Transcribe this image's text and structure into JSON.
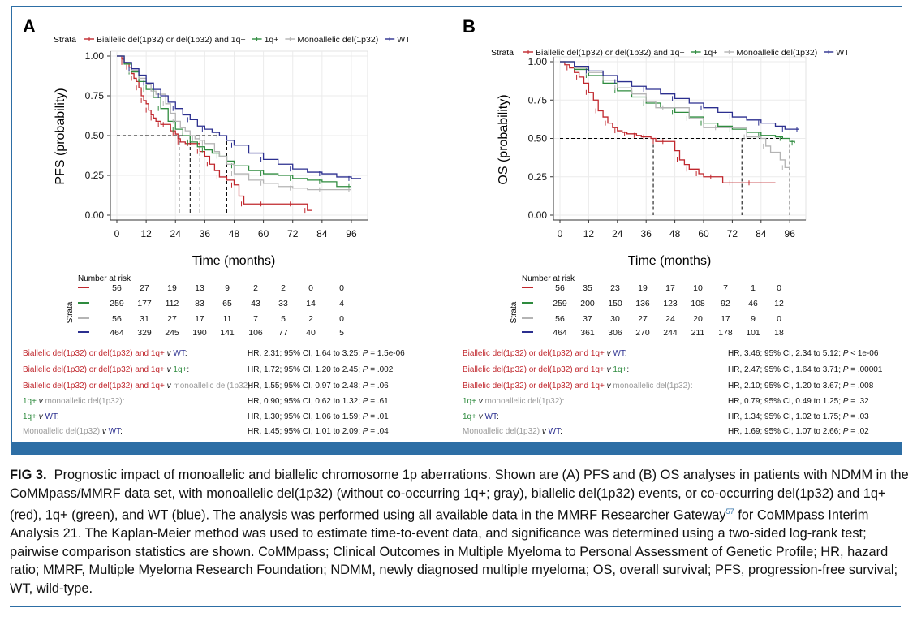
{
  "colors": {
    "biallelic": "#c0272d",
    "one_q": "#2e8b3e",
    "mono": "#b4b4b4",
    "wt": "#2b2f8f",
    "frame": "#2d6ea5"
  },
  "panels": [
    {
      "letter": "A",
      "legend": {
        "title": "Strata",
        "items": [
          "Biallelic del(1p32) or del(1p32) and 1q+",
          "1q+",
          "Monoallelic del(1p32)",
          "WT"
        ]
      },
      "risk_table": {
        "title": "Number at risk",
        "strata_label": "Strata",
        "rows": [
          [
            "56",
            "27",
            "19",
            "13",
            "9",
            "2",
            "2",
            "0",
            "0"
          ],
          [
            "259",
            "177",
            "112",
            "83",
            "65",
            "43",
            "33",
            "14",
            "4"
          ],
          [
            "56",
            "31",
            "27",
            "17",
            "11",
            "7",
            "5",
            "2",
            "0"
          ],
          [
            "464",
            "329",
            "245",
            "190",
            "141",
            "106",
            "77",
            "40",
            "5"
          ]
        ]
      },
      "comparisons": [
        {
          "a": "Biallelic del(1p32) or del(1p32) and 1q+",
          "v": "v",
          "b": "WT",
          "end": ":",
          "stats": "HR, 2.31; 95% CI, 1.64 to 3.25;",
          "p": "P",
          "pv": "= 1.5e-06"
        },
        {
          "a": "Biallelic del(1p32) or del(1p32) and 1q+",
          "v": "v",
          "b": "1q+",
          "end": ":",
          "stats": "HR, 1.72; 95% CI, 1.20 to 2.45;",
          "p": "P",
          "pv": "= .002"
        },
        {
          "a": "Biallelic del(1p32) or del(1p32) and 1q+",
          "v": "v",
          "b": "monoallelic del(1p32)",
          "end": ":",
          "stats": "HR, 1.55; 95% CI, 0.97 to 2.48;",
          "p": "P",
          "pv": "= .06"
        },
        {
          "a": "1q+",
          "v": "v",
          "b": "monoallelic del(1p32)",
          "end": ":",
          "stats": "HR, 0.90; 95% CI, 0.62 to 1.32;",
          "p": "P",
          "pv": "= .61"
        },
        {
          "a": "1q+",
          "v": "v",
          "b": "WT",
          "end": ":",
          "stats": "HR, 1.30; 95% CI, 1.06 to 1.59;",
          "p": "P",
          "pv": "= .01"
        },
        {
          "a": "Monoallelic del(1p32)",
          "v": "v",
          "b": "WT",
          "end": ":",
          "stats": "HR, 1.45; 95% CI, 1.01 to 2.09;",
          "p": "P",
          "pv": "= .04"
        }
      ]
    },
    {
      "letter": "B",
      "legend": {
        "title": "Strata",
        "items": [
          "Biallelic del(1p32) or del(1p32) and 1q+",
          "1q+",
          "Monoallelic del(1p32)",
          "WT"
        ]
      },
      "risk_table": {
        "title": "Number at risk",
        "strata_label": "Strata",
        "rows": [
          [
            "56",
            "35",
            "23",
            "19",
            "17",
            "10",
            "7",
            "1",
            "0"
          ],
          [
            "259",
            "200",
            "150",
            "136",
            "123",
            "108",
            "92",
            "46",
            "12"
          ],
          [
            "56",
            "37",
            "30",
            "27",
            "24",
            "20",
            "17",
            "9",
            "0"
          ],
          [
            "464",
            "361",
            "306",
            "270",
            "244",
            "211",
            "178",
            "101",
            "18"
          ]
        ]
      },
      "comparisons": [
        {
          "a": "Biallelic del(1p32) or del(1p32) and 1q+",
          "v": "v",
          "b": "WT",
          "end": ":",
          "stats": "HR, 3.46; 95% CI, 2.34 to 5.12;",
          "p": "P",
          "pv": "< 1e-06"
        },
        {
          "a": "Biallelic del(1p32) or del(1p32) and 1q+",
          "v": "v",
          "b": "1q+",
          "end": ":",
          "stats": "HR, 2.47; 95% CI, 1.64 to 3.71;",
          "p": "P",
          "pv": "= .00001"
        },
        {
          "a": "Biallelic del(1p32) or del(1p32) and 1q+",
          "v": "v",
          "b": "monoallelic del(1p32)",
          "end": ":",
          "stats": "HR, 2.10; 95% CI, 1.20 to 3.67;",
          "p": "P",
          "pv": "= .008"
        },
        {
          "a": "1q+",
          "v": "v",
          "b": "monoallelic del(1p32)",
          "end": ":",
          "stats": "HR, 0.79; 95% CI, 0.49 to 1.25;",
          "p": "P",
          "pv": "= .32"
        },
        {
          "a": "1q+",
          "v": "v",
          "b": "WT",
          "end": ":",
          "stats": "HR, 1.34; 95% CI, 1.02 to 1.75;",
          "p": "P",
          "pv": "= .03"
        },
        {
          "a": "Monoallelic del(1p32)",
          "v": "v",
          "b": "WT",
          "end": ":",
          "stats": "HR, 1.69; 95% CI, 1.07 to 2.66;",
          "p": "P",
          "pv": "= .02"
        }
      ]
    }
  ],
  "chart_data": [
    {
      "type": "line",
      "panel": "A",
      "xlabel": "Time (months)",
      "ylabel": "PFS (probability)",
      "xlim": [
        0,
        100
      ],
      "ylim": [
        0,
        1.0
      ],
      "x_ticks": [
        "0",
        "12",
        "24",
        "36",
        "48",
        "60",
        "72",
        "84",
        "96"
      ],
      "y_ticks": [
        "0.00",
        "0.25",
        "0.50",
        "0.75",
        "1.00"
      ],
      "grid": true,
      "legend_position": "top",
      "medians": [
        25.5,
        30,
        34,
        45
      ],
      "series": [
        {
          "name": "Biallelic del(1p32) or del(1p32) and 1q+",
          "color_key": "biallelic",
          "x": [
            0,
            2,
            3,
            4,
            5,
            6,
            7,
            8,
            9,
            10,
            11,
            12,
            13,
            14,
            15,
            16,
            18,
            19,
            20,
            22,
            24,
            25,
            26,
            28,
            30,
            32,
            34,
            36,
            38,
            40,
            42,
            45,
            48,
            50,
            52,
            56,
            60,
            66,
            72,
            76,
            78,
            80
          ],
          "y": [
            1.0,
            0.98,
            0.96,
            0.95,
            0.93,
            0.89,
            0.86,
            0.84,
            0.8,
            0.75,
            0.72,
            0.7,
            0.66,
            0.63,
            0.61,
            0.59,
            0.57,
            0.57,
            0.57,
            0.53,
            0.51,
            0.48,
            0.46,
            0.45,
            0.45,
            0.45,
            0.4,
            0.37,
            0.32,
            0.28,
            0.24,
            0.22,
            0.19,
            0.12,
            0.07,
            0.07,
            0.07,
            0.07,
            0.07,
            0.07,
            0.03,
            0.03
          ]
        },
        {
          "name": "1q+",
          "color_key": "one_q",
          "x": [
            0,
            3,
            6,
            9,
            12,
            15,
            18,
            21,
            24,
            27,
            30,
            33,
            36,
            39,
            42,
            45,
            48,
            54,
            60,
            66,
            72,
            78,
            84,
            90,
            96
          ],
          "y": [
            1.0,
            0.95,
            0.9,
            0.84,
            0.79,
            0.74,
            0.67,
            0.59,
            0.54,
            0.5,
            0.46,
            0.43,
            0.41,
            0.39,
            0.37,
            0.34,
            0.31,
            0.28,
            0.26,
            0.25,
            0.23,
            0.22,
            0.21,
            0.18,
            0.18
          ]
        },
        {
          "name": "Monoallelic del(1p32)",
          "color_key": "mono",
          "x": [
            0,
            3,
            6,
            9,
            12,
            14,
            16,
            18,
            20,
            22,
            24,
            26,
            28,
            30,
            32,
            34,
            36,
            40,
            42,
            45,
            48,
            54,
            60,
            66,
            72,
            78,
            84,
            90,
            96
          ],
          "y": [
            1.0,
            0.96,
            0.91,
            0.86,
            0.82,
            0.78,
            0.76,
            0.76,
            0.7,
            0.64,
            0.59,
            0.55,
            0.53,
            0.5,
            0.48,
            0.47,
            0.45,
            0.4,
            0.37,
            0.32,
            0.26,
            0.22,
            0.2,
            0.18,
            0.17,
            0.16,
            0.16,
            0.16,
            0.16
          ]
        },
        {
          "name": "WT",
          "color_key": "wt",
          "x": [
            0,
            3,
            6,
            9,
            12,
            15,
            18,
            21,
            24,
            27,
            30,
            33,
            36,
            39,
            42,
            45,
            48,
            54,
            60,
            66,
            72,
            78,
            84,
            90,
            96,
            100
          ],
          "y": [
            1.0,
            0.96,
            0.92,
            0.88,
            0.83,
            0.79,
            0.75,
            0.71,
            0.67,
            0.63,
            0.6,
            0.56,
            0.54,
            0.52,
            0.5,
            0.47,
            0.44,
            0.39,
            0.35,
            0.32,
            0.29,
            0.27,
            0.26,
            0.24,
            0.23,
            0.23
          ]
        }
      ]
    },
    {
      "type": "line",
      "panel": "B",
      "xlabel": "Time (months)",
      "ylabel": "OS (probability)",
      "xlim": [
        0,
        100
      ],
      "ylim": [
        0,
        1.0
      ],
      "x_ticks": [
        "0",
        "12",
        "24",
        "36",
        "48",
        "60",
        "72",
        "84",
        "96"
      ],
      "y_ticks": [
        "0.00",
        "0.25",
        "0.50",
        "0.75",
        "1.00"
      ],
      "grid": true,
      "legend_position": "top",
      "medians": [
        39,
        76,
        96
      ],
      "series": [
        {
          "name": "Biallelic del(1p32) or del(1p32) and 1q+",
          "color_key": "biallelic",
          "x": [
            0,
            2,
            4,
            6,
            8,
            10,
            12,
            14,
            16,
            18,
            20,
            22,
            24,
            26,
            28,
            30,
            32,
            34,
            36,
            38,
            40,
            42,
            44,
            48,
            50,
            52,
            54,
            56,
            58,
            60,
            64,
            68,
            72,
            76,
            80,
            84,
            90
          ],
          "y": [
            1.0,
            0.98,
            0.96,
            0.93,
            0.9,
            0.86,
            0.8,
            0.75,
            0.68,
            0.64,
            0.6,
            0.57,
            0.55,
            0.54,
            0.53,
            0.53,
            0.52,
            0.51,
            0.51,
            0.5,
            0.48,
            0.48,
            0.48,
            0.42,
            0.36,
            0.33,
            0.3,
            0.3,
            0.27,
            0.25,
            0.25,
            0.21,
            0.21,
            0.21,
            0.21,
            0.21,
            0.21
          ]
        },
        {
          "name": "1q+",
          "color_key": "one_q",
          "x": [
            0,
            6,
            12,
            18,
            24,
            30,
            36,
            42,
            48,
            54,
            60,
            66,
            72,
            78,
            84,
            90,
            93,
            96,
            98
          ],
          "y": [
            1.0,
            0.95,
            0.91,
            0.86,
            0.81,
            0.77,
            0.73,
            0.7,
            0.67,
            0.64,
            0.6,
            0.58,
            0.56,
            0.54,
            0.52,
            0.51,
            0.5,
            0.48,
            0.47
          ]
        },
        {
          "name": "Monoallelic del(1p32)",
          "color_key": "mono",
          "x": [
            0,
            6,
            12,
            18,
            24,
            30,
            36,
            40,
            44,
            48,
            54,
            60,
            66,
            72,
            78,
            84,
            86,
            88,
            90,
            92,
            94,
            96
          ],
          "y": [
            1.0,
            0.96,
            0.93,
            0.88,
            0.83,
            0.79,
            0.74,
            0.7,
            0.7,
            0.7,
            0.63,
            0.57,
            0.57,
            0.57,
            0.51,
            0.5,
            0.45,
            0.41,
            0.41,
            0.36,
            0.31,
            0.31
          ]
        },
        {
          "name": "WT",
          "color_key": "wt",
          "x": [
            0,
            6,
            12,
            18,
            24,
            30,
            36,
            42,
            48,
            54,
            60,
            66,
            72,
            78,
            84,
            90,
            94,
            96,
            100
          ],
          "y": [
            1.0,
            0.97,
            0.94,
            0.91,
            0.87,
            0.84,
            0.82,
            0.79,
            0.76,
            0.73,
            0.7,
            0.67,
            0.64,
            0.62,
            0.6,
            0.58,
            0.56,
            0.56,
            0.56
          ]
        }
      ]
    }
  ],
  "caption": {
    "label": "FIG 3.",
    "pre": "Prognostic impact of monoallelic and biallelic chromosome 1p aberrations. Shown are (A) PFS and (B) OS analyses in patients with NDMM in the CoMMpass/MMRF data set, with monoallelic del(1p32) (without co-occurring 1q+; gray), biallelic del(1p32) events, or co-occurring del(1p32) and 1q+ (red), 1q+ (green), and WT (blue). The analysis was performed using all available data in the MMRF Researcher Gateway",
    "ref": "57",
    "post": " for CoMMpass Interim Analysis 21. The Kaplan-Meier method was used to estimate time-to-event data, and significance was determined using a two-sided log-rank test; pairwise comparison statistics are shown. CoMMpass; Clinical Outcomes in Multiple Myeloma to Personal Assessment of Genetic Profile; HR, hazard ratio; MMRF, Multiple Myeloma Research Foundation; NDMM, newly diagnosed multiple myeloma; OS, overall survival; PFS, progression-free survival; WT, wild-type."
  }
}
